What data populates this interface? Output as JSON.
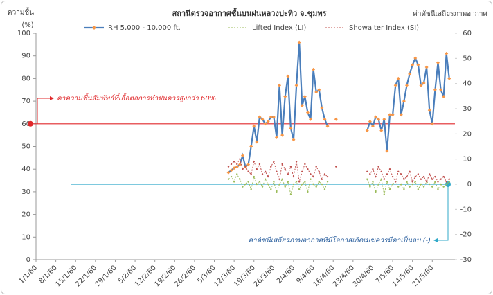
{
  "chart_data": {
    "type": "line",
    "title": "สถานีตรวจอากาศชั้นบนฝนหลวงปะทิว จ.ชุมพร",
    "ylabel": [
      "ความชื้น",
      "(%)"
    ],
    "y2label": "ค่าดัชนีเสถียรภาพอากาศ",
    "xlim": [
      0,
      148
    ],
    "xticks": [
      {
        "value": 0,
        "label": "1/1/60"
      },
      {
        "value": 7,
        "label": "8/1/60"
      },
      {
        "value": 14,
        "label": "15/1/60"
      },
      {
        "value": 21,
        "label": "22/1/60"
      },
      {
        "value": 28,
        "label": "29/1/60"
      },
      {
        "value": 35,
        "label": "5/2/60"
      },
      {
        "value": 42,
        "label": "12/2/60"
      },
      {
        "value": 49,
        "label": "19/2/60"
      },
      {
        "value": 56,
        "label": "26/2/60"
      },
      {
        "value": 63,
        "label": "5/3/60"
      },
      {
        "value": 70,
        "label": "12/3/60"
      },
      {
        "value": 77,
        "label": "19/3/60"
      },
      {
        "value": 84,
        "label": "26/3/60"
      },
      {
        "value": 91,
        "label": "2/4/60"
      },
      {
        "value": 98,
        "label": "9/4/60"
      },
      {
        "value": 105,
        "label": "16/4/60"
      },
      {
        "value": 112,
        "label": "23/4/60"
      },
      {
        "value": 119,
        "label": "30/4/60"
      },
      {
        "value": 126,
        "label": "7/5/60"
      },
      {
        "value": 133,
        "label": "14/5/60"
      },
      {
        "value": 140,
        "label": "21/5/60"
      }
    ],
    "ylim": [
      0,
      100
    ],
    "yticks": [
      0,
      10,
      20,
      30,
      40,
      50,
      60,
      70,
      80,
      90,
      100
    ],
    "y2lim": [
      -30,
      60
    ],
    "y2ticks": [
      -30,
      -20,
      -10,
      0,
      10,
      20,
      30,
      40,
      50,
      60
    ],
    "grid": false,
    "x": [
      68,
      69,
      70,
      71,
      72,
      73,
      74,
      75,
      76,
      77,
      78,
      79,
      80,
      81,
      82,
      83,
      84,
      85,
      86,
      87,
      88,
      89,
      90,
      91,
      92,
      93,
      94,
      95,
      96,
      97,
      98,
      99,
      100,
      101,
      102,
      103,
      104,
      105,
      106,
      107,
      108,
      109,
      110,
      111,
      112,
      113,
      114,
      115,
      116,
      117,
      118,
      119,
      120,
      121,
      122,
      123,
      124,
      125,
      126,
      127,
      128,
      129,
      130,
      131,
      132,
      133,
      134,
      135,
      136,
      137,
      138,
      139,
      140,
      141,
      142,
      143,
      144,
      145,
      146
    ],
    "series": [
      {
        "name": "RH 5,000 - 10,000 ft.",
        "color": "#4a7ebb",
        "marker_color": "#f79646",
        "style": "solid",
        "values": [
          38.5,
          39.5,
          40.5,
          41,
          42,
          46,
          41,
          42,
          50,
          59,
          52,
          63,
          62,
          60,
          61,
          63,
          63,
          54,
          77,
          55,
          72,
          81,
          58,
          53,
          77,
          96,
          68,
          72,
          65,
          62,
          84,
          74,
          75,
          67,
          62,
          59,
          null,
          null,
          62,
          null,
          null,
          null,
          null,
          null,
          null,
          null,
          null,
          null,
          null,
          57,
          61,
          59,
          63,
          62,
          57,
          62,
          48,
          64,
          64,
          77,
          80,
          64,
          70,
          77,
          82,
          86,
          89,
          86,
          77,
          78,
          85,
          66,
          60,
          75,
          87,
          75,
          72,
          91,
          80
        ]
      },
      {
        "name": "Lifted Index (LI)",
        "color": "#9bbb59",
        "style": "dotted",
        "axis": "y2",
        "values": [
          2,
          3,
          1,
          4,
          2,
          -1,
          0,
          1,
          -2,
          3,
          0,
          1,
          -1,
          2,
          0,
          -2,
          1,
          -3,
          0,
          2,
          -1,
          1,
          -4,
          0,
          1,
          -2,
          0,
          1,
          -3,
          2,
          0,
          -1,
          1,
          0,
          -2,
          1,
          null,
          null,
          null,
          null,
          null,
          null,
          null,
          null,
          null,
          null,
          null,
          null,
          null,
          2,
          -1,
          1,
          -3,
          0,
          2,
          -4,
          1,
          -2,
          0,
          1,
          -1,
          0,
          -2,
          1,
          -1,
          0,
          1,
          -2,
          0,
          -1,
          1,
          0,
          -1,
          1,
          -2,
          0,
          -1,
          0,
          1
        ]
      },
      {
        "name": "Showalter Index (SI)",
        "color": "#c0504d",
        "style": "dotted",
        "axis": "y2",
        "values": [
          7,
          8,
          9,
          8,
          10,
          6,
          7,
          5,
          4,
          9,
          6,
          8,
          4,
          5,
          3,
          7,
          9,
          5,
          2,
          8,
          6,
          4,
          7,
          3,
          9,
          1,
          5,
          8,
          6,
          4,
          3,
          7,
          5,
          2,
          4,
          3,
          null,
          null,
          7,
          null,
          null,
          null,
          null,
          null,
          null,
          null,
          null,
          null,
          null,
          5,
          4,
          6,
          3,
          7,
          5,
          2,
          4,
          6,
          3,
          1,
          5,
          4,
          2,
          3,
          5,
          1,
          3,
          4,
          2,
          3,
          1,
          4,
          2,
          3,
          1,
          2,
          3,
          1,
          2
        ]
      }
    ],
    "annotations": [
      {
        "text": "ค่าความชื้นสัมพัทธ์ที่เอื้อต่อการทำฝนควรสูงกว่า 60%",
        "value": 60,
        "axis": "y",
        "color": "#e0282b"
      },
      {
        "text": "ค่าดัชนีเสถียรภาพอากาศที่มีโอกาสเกิดเมฆควรมีค่าเป็นลบ (-)",
        "value": 0,
        "axis": "y2",
        "color": "#31a9c9"
      }
    ]
  }
}
